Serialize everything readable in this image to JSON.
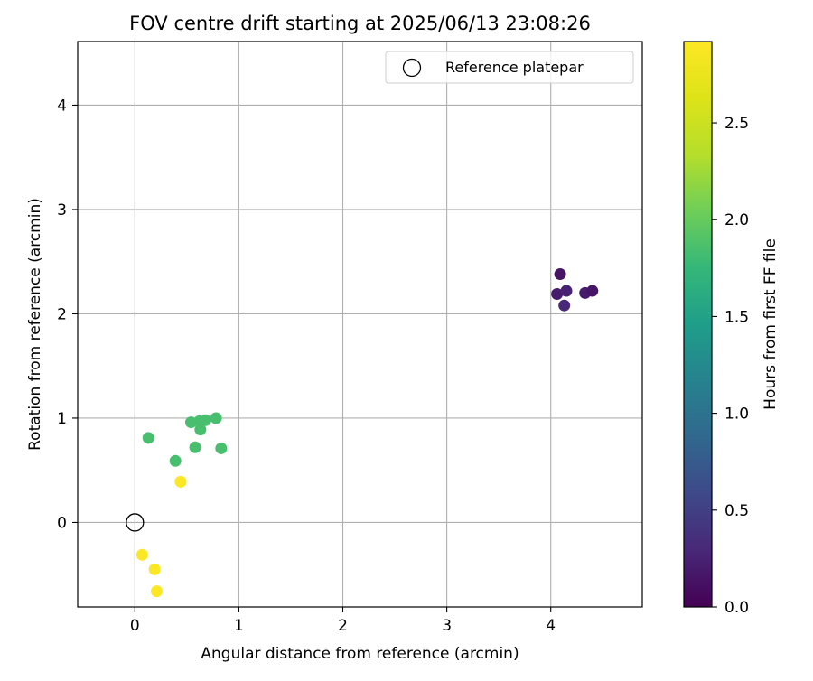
{
  "chart_data": {
    "type": "scatter",
    "title": "FOV centre drift starting at 2025/06/13 23:08:26",
    "xlabel": "Angular distance from reference (arcmin)",
    "ylabel": "Rotation from reference (arcmin)",
    "xlim": [
      -0.55,
      4.88
    ],
    "ylim": [
      -0.81,
      4.61
    ],
    "xticks": [
      0,
      1,
      2,
      3,
      4
    ],
    "yticks": [
      0,
      1,
      2,
      3,
      4
    ],
    "grid": true,
    "legend": {
      "position": "top-right",
      "entries": [
        "Reference platepar"
      ]
    },
    "reference_point": {
      "name": "Reference platepar",
      "x": 0,
      "y": 0,
      "marker": "open-circle"
    },
    "colorbar": {
      "label": "Hours from first FF file",
      "range": [
        0.0,
        2.92
      ],
      "ticks": [
        0.0,
        0.5,
        1.0,
        1.5,
        2.0,
        2.5
      ],
      "tick_labels": [
        "0.0",
        "0.5",
        "1.0",
        "1.5",
        "2.0",
        "2.5"
      ],
      "colormap": "viridis"
    },
    "points": [
      {
        "x": 4.09,
        "y": 2.38,
        "hours": 0.15
      },
      {
        "x": 4.06,
        "y": 2.19,
        "hours": 0.2
      },
      {
        "x": 4.15,
        "y": 2.22,
        "hours": 0.25
      },
      {
        "x": 4.13,
        "y": 2.08,
        "hours": 0.3
      },
      {
        "x": 4.33,
        "y": 2.2,
        "hours": 0.2
      },
      {
        "x": 4.4,
        "y": 2.22,
        "hours": 0.15
      },
      {
        "x": 0.13,
        "y": 0.81,
        "hours": 1.85
      },
      {
        "x": 0.39,
        "y": 0.59,
        "hours": 1.85
      },
      {
        "x": 0.54,
        "y": 0.96,
        "hours": 1.85
      },
      {
        "x": 0.62,
        "y": 0.97,
        "hours": 1.85
      },
      {
        "x": 0.68,
        "y": 0.98,
        "hours": 1.85
      },
      {
        "x": 0.78,
        "y": 1.0,
        "hours": 1.85
      },
      {
        "x": 0.63,
        "y": 0.89,
        "hours": 1.85
      },
      {
        "x": 0.58,
        "y": 0.72,
        "hours": 1.85
      },
      {
        "x": 0.83,
        "y": 0.71,
        "hours": 1.85
      },
      {
        "x": 0.44,
        "y": 0.39,
        "hours": 2.9
      },
      {
        "x": 0.07,
        "y": -0.31,
        "hours": 2.9
      },
      {
        "x": 0.19,
        "y": -0.45,
        "hours": 2.9
      },
      {
        "x": 0.21,
        "y": -0.66,
        "hours": 2.9
      }
    ]
  }
}
